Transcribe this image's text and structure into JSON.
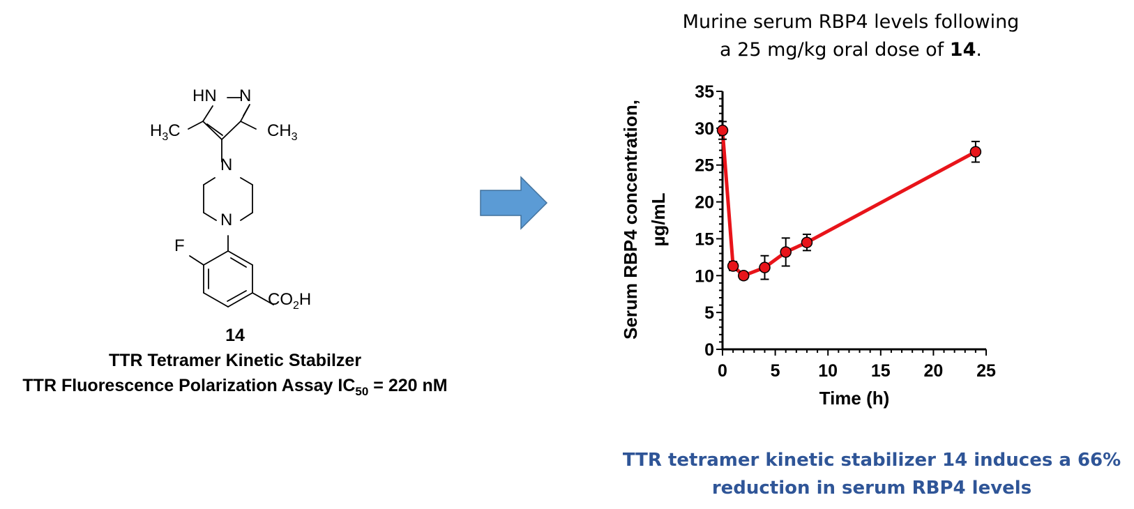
{
  "compound": {
    "number": "14",
    "description": "TTR Tetramer Kinetic Stabilzer",
    "assay_label": "TTR Fluorescence Polarization Assay IC",
    "assay_subscript": "50",
    "assay_value": " = 220 nM",
    "structure_labels": {
      "hn": "HN",
      "n_pyrazole": "N",
      "methyl_left_prefix": "H",
      "methyl_left_sub": "3",
      "methyl_left_suffix": "C",
      "methyl_right_prefix": "CH",
      "methyl_right_sub": "3",
      "n_top": "N",
      "n_bottom": "N",
      "fluorine": "F",
      "acid_prefix": "CO",
      "acid_sub": "2",
      "acid_suffix": "H"
    }
  },
  "arrow": {
    "color": "#5B9BD5",
    "stroke": "#41719C"
  },
  "chart_title": {
    "line1": "Murine serum RBP4 levels following",
    "line2_prefix": "a 25 mg/kg oral dose of ",
    "line2_bold": "14",
    "line2_suffix": "."
  },
  "summary": {
    "line1": "TTR tetramer kinetic stabilizer 14 induces a 66%",
    "line2": "reduction in serum RBP4 levels",
    "color": "#2F5597"
  },
  "chart_data": {
    "type": "line",
    "title": "Murine serum RBP4 levels following a 25 mg/kg oral dose of 14.",
    "xlabel": "Time (h)",
    "ylabel_line1": "Serum RBP4 concentration,",
    "ylabel_line2": "µg/mL",
    "xlim": [
      0,
      25
    ],
    "ylim": [
      0,
      35
    ],
    "x_ticks": [
      0,
      5,
      10,
      15,
      20,
      25
    ],
    "y_ticks": [
      0,
      5,
      10,
      15,
      20,
      25,
      30,
      35
    ],
    "x_tick_labels": [
      "0",
      "5",
      "10",
      "15",
      "20",
      "25"
    ],
    "y_tick_labels": [
      "0",
      "5",
      "10",
      "15",
      "20",
      "25",
      "30",
      "35"
    ],
    "grid": false,
    "series": [
      {
        "name": "Serum RBP4",
        "color": "#E8141A",
        "x": [
          0,
          1,
          2,
          4,
          6,
          8,
          24
        ],
        "y": [
          29.7,
          11.3,
          10.0,
          11.1,
          13.2,
          14.5,
          26.8
        ],
        "error": [
          1.2,
          0.6,
          0.5,
          1.6,
          1.9,
          1.1,
          1.4
        ]
      }
    ]
  }
}
